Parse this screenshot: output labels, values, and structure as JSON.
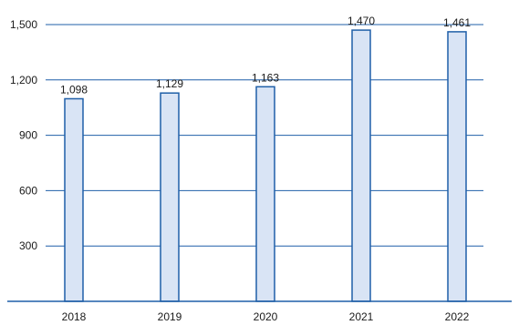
{
  "chart_data": {
    "type": "bar",
    "categories": [
      "2018",
      "2019",
      "2020",
      "2021",
      "2022"
    ],
    "values": [
      1098,
      1129,
      1163,
      1470,
      1461
    ],
    "data_labels": [
      "1,098",
      "1,129",
      "1,163",
      "1,470",
      "1,461"
    ],
    "yticks": [
      300,
      600,
      900,
      1200,
      1500
    ],
    "ytick_labels": [
      "300",
      "600",
      "900",
      "1,200",
      "1,500"
    ],
    "ylim": [
      0,
      1500
    ],
    "grid": true,
    "colors": {
      "bar_fill": "#d9e4f5",
      "bar_stroke": "#1f5fa8",
      "grid": "#1f5fa8",
      "axis": "#1f5fa8"
    }
  }
}
